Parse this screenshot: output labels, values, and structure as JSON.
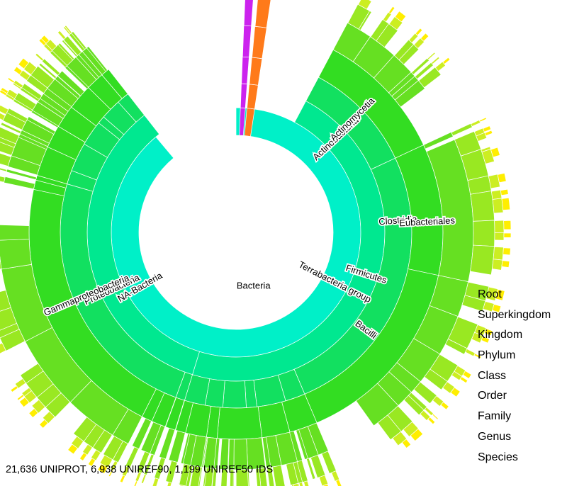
{
  "chart_data": {
    "type": "sunburst",
    "levels": [
      "Root",
      "Superkingdom",
      "Kingdom",
      "Phylum",
      "Class",
      "Order",
      "Family",
      "Genus",
      "Species"
    ],
    "labeled_nodes": [
      {
        "name": "Bacteria",
        "level": "Superkingdom",
        "start_deg": 0,
        "end_deg": 320
      },
      {
        "name": "NA-Bacteria",
        "level": "Kingdom",
        "start_deg": 197,
        "end_deg": 322
      },
      {
        "name": "Terrabacteria group",
        "level": "Kingdom",
        "start_deg": 28,
        "end_deg": 197
      },
      {
        "name": "Proteobacteria",
        "level": "Phylum",
        "start_deg": 200,
        "end_deg": 286
      },
      {
        "name": "Actinobacteria",
        "level": "Phylum",
        "start_deg": 28,
        "end_deg": 65
      },
      {
        "name": "Firmicutes",
        "level": "Phylum",
        "start_deg": 65,
        "end_deg": 157
      },
      {
        "name": "Gammaproteobacteria",
        "level": "Class",
        "start_deg": 207,
        "end_deg": 282
      },
      {
        "name": "Actinomycetia",
        "level": "Class",
        "start_deg": 28,
        "end_deg": 65
      },
      {
        "name": "Clostridia",
        "level": "Class",
        "start_deg": 65,
        "end_deg": 102
      },
      {
        "name": "Bacilli",
        "level": "Class",
        "start_deg": 102,
        "end_deg": 157
      },
      {
        "name": "Eubacteriales",
        "level": "Order",
        "start_deg": 67,
        "end_deg": 102
      }
    ],
    "other_superkingdoms_colors": [
      "#cc22ee",
      "#ff7a1a"
    ]
  },
  "legend": {
    "items": [
      "Root",
      "Superkingdom",
      "Kingdom",
      "Phylum",
      "Class",
      "Order",
      "Family",
      "Genus",
      "Species"
    ]
  },
  "footer": {
    "summary": "21,636 UNIPROT, 6,938 UNIREF90, 1,199 UNIREF50 IDS"
  }
}
